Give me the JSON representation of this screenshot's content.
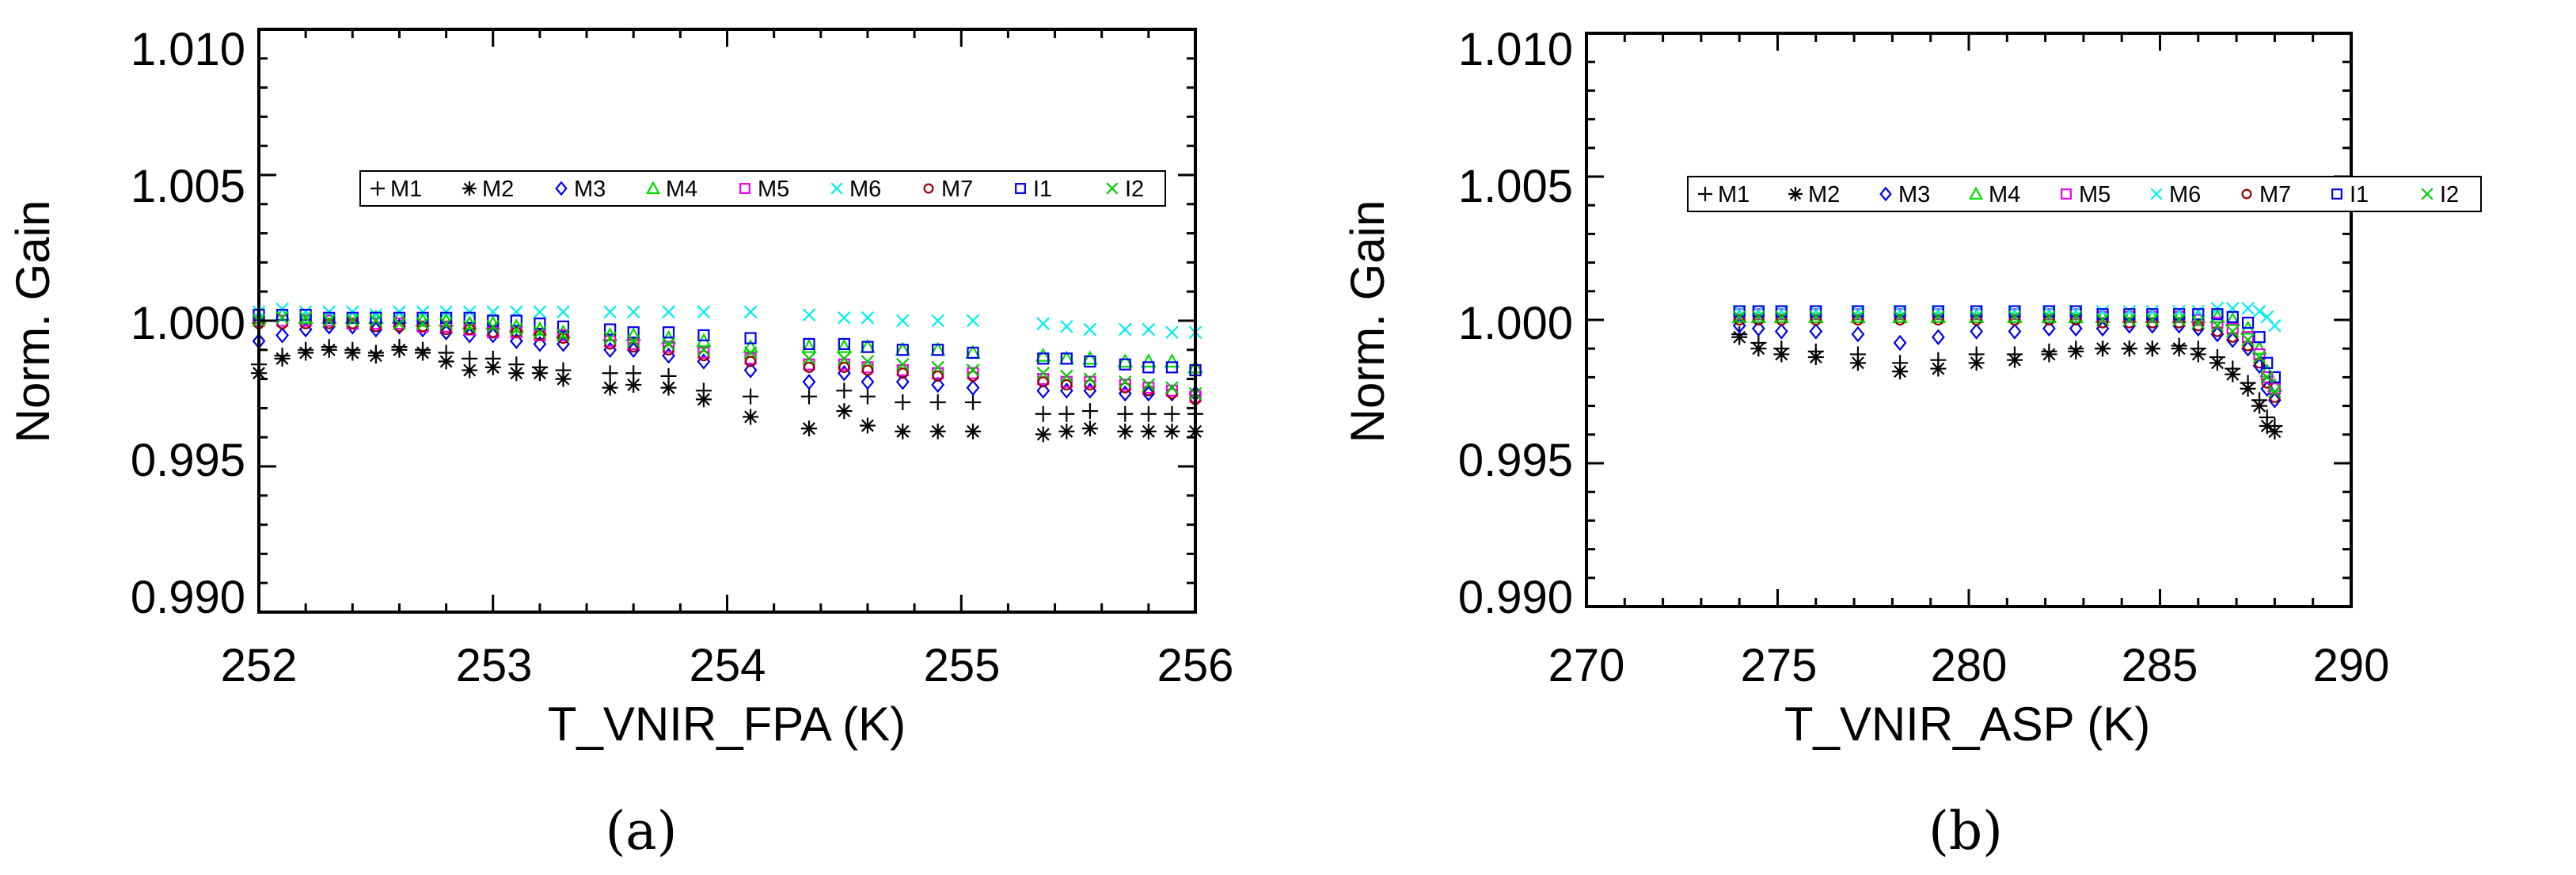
{
  "chart_data": [
    {
      "type": "scatter",
      "panel_label": "(a)",
      "xlabel": "T_VNIR_FPA (K)",
      "ylabel": "Norm. Gain",
      "xlim": [
        252,
        256
      ],
      "ylim": [
        0.99,
        1.01
      ],
      "xticks": [
        "252",
        "253",
        "254",
        "255",
        "256"
      ],
      "yticks": [
        "0.990",
        "0.995",
        "1.000",
        "1.005",
        "1.010"
      ],
      "legend_position": "upper-middle",
      "x": [
        252.0,
        252.1,
        252.2,
        252.3,
        252.4,
        252.5,
        252.6,
        252.7,
        252.8,
        252.9,
        253.0,
        253.1,
        253.2,
        253.3,
        253.5,
        253.6,
        253.75,
        253.9,
        254.1,
        254.35,
        254.5,
        254.6,
        254.75,
        254.9,
        255.05,
        255.35,
        255.45,
        255.55,
        255.7,
        255.8,
        255.9,
        256.0
      ],
      "series": [
        {
          "name": "M1",
          "marker": "plus",
          "color": "#000000",
          "values": [
            0.9985,
            0.9988,
            0.999,
            0.9991,
            0.999,
            0.9989,
            0.9991,
            0.999,
            0.9989,
            0.9987,
            0.9987,
            0.9985,
            0.9984,
            0.9983,
            0.9982,
            0.9982,
            0.9981,
            0.9976,
            0.9974,
            0.9974,
            0.9976,
            0.9974,
            0.9972,
            0.9972,
            0.9972,
            0.9968,
            0.9968,
            0.9969,
            0.9968,
            0.9968,
            0.9968,
            0.9968
          ]
        },
        {
          "name": "M2",
          "marker": "asterisk",
          "color": "#000000",
          "values": [
            0.9982,
            0.9987,
            0.9989,
            0.999,
            0.9989,
            0.9988,
            0.999,
            0.9989,
            0.9986,
            0.9983,
            0.9984,
            0.9982,
            0.9982,
            0.998,
            0.9977,
            0.9978,
            0.9977,
            0.9973,
            0.9967,
            0.9963,
            0.9969,
            0.9964,
            0.9962,
            0.9962,
            0.9962,
            0.9961,
            0.9962,
            0.9963,
            0.9962,
            0.9962,
            0.9962,
            0.9962
          ]
        },
        {
          "name": "M3",
          "marker": "diamond",
          "color": "#0000ee",
          "values": [
            0.9993,
            0.9995,
            0.9997,
            0.9998,
            0.9998,
            0.9997,
            0.9998,
            0.9997,
            0.9996,
            0.9995,
            0.9995,
            0.9993,
            0.9992,
            0.9992,
            0.999,
            0.999,
            0.9988,
            0.9986,
            0.9983,
            0.9979,
            0.9982,
            0.9979,
            0.9979,
            0.9978,
            0.9977,
            0.9976,
            0.9976,
            0.9976,
            0.9975,
            0.9975,
            0.9975,
            0.9975
          ]
        },
        {
          "name": "M4",
          "marker": "triangle",
          "color": "#00dd00",
          "values": [
            1.0001,
            1.0002,
            1.0001,
            1.0001,
            1.0001,
            1.0001,
            1.0001,
            1.0,
            1.0,
            0.9999,
            0.9999,
            0.9998,
            0.9997,
            0.9996,
            0.9995,
            0.9995,
            0.9994,
            0.9993,
            0.9991,
            0.9991,
            0.9991,
            0.9991,
            0.999,
            0.999,
            0.9989,
            0.9988,
            0.9987,
            0.9987,
            0.9986,
            0.9986,
            0.9986,
            0.9984
          ]
        },
        {
          "name": "M5",
          "marker": "square",
          "color": "#ee00ee",
          "values": [
            1.0,
            1.0,
            1.0,
            1.0,
            0.9999,
            0.9999,
            0.9999,
            0.9998,
            0.9998,
            0.9997,
            0.9996,
            0.9996,
            0.9995,
            0.9995,
            0.9993,
            0.9992,
            0.9991,
            0.9989,
            0.9987,
            0.9985,
            0.9985,
            0.9984,
            0.9983,
            0.9982,
            0.9982,
            0.998,
            0.9979,
            0.9979,
            0.9978,
            0.9977,
            0.9976,
            0.9974
          ]
        },
        {
          "name": "M6",
          "marker": "cross",
          "color": "#00eeee",
          "values": [
            1.0003,
            1.0004,
            1.0003,
            1.0003,
            1.0003,
            1.0002,
            1.0003,
            1.0003,
            1.0003,
            1.0003,
            1.0003,
            1.0003,
            1.0003,
            1.0003,
            1.0003,
            1.0003,
            1.0003,
            1.0003,
            1.0003,
            1.0002,
            1.0001,
            1.0001,
            1.0,
            1.0,
            1.0,
            0.9999,
            0.9998,
            0.9997,
            0.9997,
            0.9997,
            0.9996,
            0.9996
          ]
        },
        {
          "name": "M7",
          "marker": "circle",
          "color": "#990000",
          "values": [
            0.9999,
            0.9999,
            0.9999,
            0.9999,
            0.9999,
            0.9998,
            0.9998,
            0.9998,
            0.9997,
            0.9997,
            0.9996,
            0.9996,
            0.9995,
            0.9994,
            0.9992,
            0.9991,
            0.999,
            0.9988,
            0.9986,
            0.9984,
            0.9984,
            0.9983,
            0.9982,
            0.9981,
            0.9981,
            0.9979,
            0.9978,
            0.9978,
            0.9977,
            0.9976,
            0.9975,
            0.9973
          ]
        },
        {
          "name": "I1",
          "marker": "square",
          "color": "#0000ee",
          "values": [
            1.0002,
            1.0002,
            1.0002,
            1.0001,
            1.0001,
            1.0001,
            1.0001,
            1.0001,
            1.0001,
            1.0001,
            1.0,
            1.0,
            0.9999,
            0.9998,
            0.9997,
            0.9996,
            0.9996,
            0.9995,
            0.9994,
            0.9992,
            0.9992,
            0.9991,
            0.999,
            0.999,
            0.9989,
            0.9987,
            0.9987,
            0.9986,
            0.9985,
            0.9984,
            0.9984,
            0.9983
          ]
        },
        {
          "name": "I2",
          "marker": "cross",
          "color": "#00cc00",
          "values": [
            1.0,
            1.0001,
            1.0001,
            1.0,
            1.0,
            1.0,
            0.9999,
            0.9999,
            0.9999,
            0.9998,
            0.9998,
            0.9997,
            0.9996,
            0.9995,
            0.9994,
            0.9993,
            0.9992,
            0.999,
            0.9989,
            0.9987,
            0.9987,
            0.9986,
            0.9985,
            0.9984,
            0.9983,
            0.9982,
            0.9981,
            0.998,
            0.9979,
            0.9978,
            0.9977,
            0.9975
          ]
        }
      ]
    },
    {
      "type": "scatter",
      "panel_label": "(b)",
      "xlabel": "T_VNIR_ASP (K)",
      "ylabel": "Norm. Gain",
      "xlim": [
        270,
        290
      ],
      "ylim": [
        0.99,
        1.01
      ],
      "xticks": [
        "270",
        "275",
        "280",
        "285",
        "290"
      ],
      "yticks": [
        "0.990",
        "0.995",
        "1.000",
        "1.005",
        "1.010"
      ],
      "legend_position": "upper-middle",
      "x": [
        274.0,
        274.5,
        275.1,
        276.0,
        277.1,
        278.2,
        279.2,
        280.2,
        281.2,
        282.1,
        282.8,
        283.5,
        284.2,
        284.8,
        285.5,
        286.0,
        286.5,
        286.9,
        287.3,
        287.6,
        287.8,
        288.0
      ],
      "series": [
        {
          "name": "M1",
          "marker": "plus",
          "color": "#000000",
          "values": [
            0.9995,
            0.9992,
            0.999,
            0.9989,
            0.9988,
            0.9985,
            0.9986,
            0.9988,
            0.9988,
            0.9989,
            0.999,
            0.999,
            0.999,
            0.999,
            0.9991,
            0.999,
            0.9987,
            0.9983,
            0.9978,
            0.9972,
            0.9966,
            0.9963
          ]
        },
        {
          "name": "M2",
          "marker": "asterisk",
          "color": "#000000",
          "values": [
            0.9994,
            0.999,
            0.9988,
            0.9987,
            0.9985,
            0.9982,
            0.9983,
            0.9985,
            0.9986,
            0.9988,
            0.9989,
            0.999,
            0.999,
            0.999,
            0.999,
            0.9988,
            0.9985,
            0.9981,
            0.9976,
            0.997,
            0.9963,
            0.9961
          ]
        },
        {
          "name": "M3",
          "marker": "diamond",
          "color": "#0000ee",
          "values": [
            0.9998,
            0.9997,
            0.9996,
            0.9996,
            0.9995,
            0.9992,
            0.9994,
            0.9996,
            0.9996,
            0.9997,
            0.9997,
            0.9997,
            0.9998,
            0.9998,
            0.9998,
            0.9997,
            0.9995,
            0.9993,
            0.999,
            0.9984,
            0.9976,
            0.9972
          ]
        },
        {
          "name": "M4",
          "marker": "triangle",
          "color": "#00dd00",
          "values": [
            1.0001,
            1.0001,
            1.0001,
            1.0001,
            1.0001,
            1.0001,
            1.0001,
            1.0001,
            1.0001,
            1.0001,
            1.0001,
            1.0001,
            1.0001,
            1.0001,
            1.0001,
            1.0001,
            1.0001,
            1.0,
            0.9997,
            0.999,
            0.9982,
            0.9977
          ]
        },
        {
          "name": "M5",
          "marker": "square",
          "color": "#ee00ee",
          "values": [
            1.0002,
            1.0002,
            1.0002,
            1.0002,
            1.0002,
            1.0002,
            1.0002,
            1.0002,
            1.0002,
            1.0002,
            1.0002,
            1.0001,
            1.0001,
            1.0001,
            1.0001,
            1.0,
            0.9999,
            0.9997,
            0.9994,
            0.9988,
            0.998,
            0.9976
          ]
        },
        {
          "name": "M6",
          "marker": "cross",
          "color": "#00eeee",
          "values": [
            1.0003,
            1.0003,
            1.0003,
            1.0003,
            1.0003,
            1.0003,
            1.0003,
            1.0003,
            1.0003,
            1.0003,
            1.0003,
            1.0003,
            1.0003,
            1.0003,
            1.0003,
            1.0003,
            1.0004,
            1.0004,
            1.0004,
            1.0003,
            1.0001,
            0.9998
          ]
        },
        {
          "name": "M7",
          "marker": "circle",
          "color": "#990000",
          "values": [
            1.0,
            1.0,
            1.0,
            1.0,
            1.0,
            1.0,
            1.0,
            1.0,
            1.0,
            1.0,
            1.0,
            0.9999,
            0.9999,
            0.9999,
            0.9999,
            0.9998,
            0.9996,
            0.9994,
            0.9991,
            0.9985,
            0.9978,
            0.9973
          ]
        },
        {
          "name": "I1",
          "marker": "square",
          "color": "#0000ee",
          "values": [
            1.0003,
            1.0003,
            1.0003,
            1.0003,
            1.0003,
            1.0003,
            1.0003,
            1.0003,
            1.0003,
            1.0003,
            1.0003,
            1.0002,
            1.0002,
            1.0002,
            1.0002,
            1.0002,
            1.0002,
            1.0001,
            0.9999,
            0.9994,
            0.9985,
            0.998
          ]
        },
        {
          "name": "I2",
          "marker": "cross",
          "color": "#00cc00",
          "values": [
            1.0001,
            1.0001,
            1.0001,
            1.0001,
            1.0001,
            1.0001,
            1.0001,
            1.0001,
            1.0001,
            1.0001,
            1.0001,
            1.0,
            1.0,
            1.0,
            1.0,
            0.9999,
            0.9998,
            0.9996,
            0.9993,
            0.9987,
            0.998,
            0.9975
          ]
        }
      ]
    }
  ]
}
